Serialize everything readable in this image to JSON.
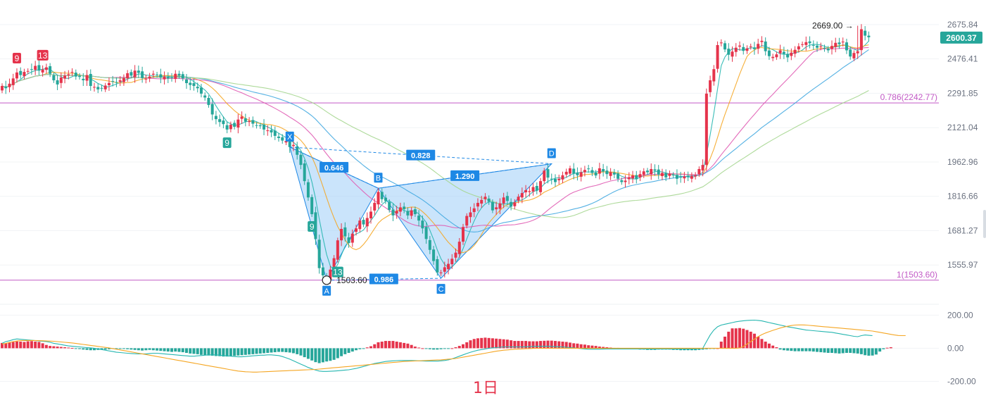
{
  "timeframe_label": "1日",
  "colors": {
    "up": "#e5334b",
    "down": "#26a69a",
    "harmonic_fill": "#9fcdf7",
    "harmonic_line": "#1e88e5",
    "ma_short": "#26b6b0",
    "ma_mid": "#f5a623",
    "ma_long1": "#e05bb3",
    "ma_long2": "#41a8e0",
    "ma_long3": "#a5d68f",
    "fib_line": "#c25ac6",
    "price_tag": "#26a69a"
  },
  "price_axis": {
    "ticks": [
      "2675.84",
      "2476.41",
      "2291.85",
      "2121.04",
      "1962.96",
      "1816.66",
      "1681.27",
      "1555.97"
    ],
    "current_price": "2600.37"
  },
  "indicator_axis": {
    "ticks": [
      "200.00",
      "0.00",
      "-200.00"
    ]
  },
  "chart_data": {
    "type": "candlestick",
    "y_scale": "log",
    "ylim": [
      1440,
      2740
    ],
    "price_ticks": [
      2675.84,
      2476.41,
      2291.85,
      2121.04,
      1962.96,
      1816.66,
      1681.27,
      1555.97
    ],
    "current_price": 2600.37,
    "high_marker": {
      "value": 2669.0,
      "label": "2669.00"
    },
    "low_marker": {
      "value": 1503.6,
      "label": "1503.60"
    },
    "fib_levels": [
      {
        "ratio": "0.786",
        "price": 2242.77,
        "label": "0.786(2242.77)"
      },
      {
        "ratio": "1",
        "price": 1503.6,
        "label": "1(1503.60)"
      }
    ],
    "harmonic_pattern": {
      "points": [
        {
          "label": "X",
          "index": 78,
          "price": 2030
        },
        {
          "label": "A",
          "index": 88,
          "price": 1503.6
        },
        {
          "label": "B",
          "index": 102,
          "price": 1850
        },
        {
          "label": "C",
          "index": 119,
          "price": 1510
        },
        {
          "label": "D",
          "index": 149,
          "price": 1955
        }
      ],
      "ratios": [
        {
          "label": "0.646",
          "from": "X",
          "to": "B"
        },
        {
          "label": "0.828",
          "from": "X",
          "to": "D"
        },
        {
          "label": "1.290",
          "from": "B",
          "to": "D"
        },
        {
          "label": "0.986",
          "from": "A",
          "to": "C"
        }
      ]
    },
    "td_labels": [
      {
        "text": "9",
        "index": 4,
        "pos": "above",
        "kind": "sell"
      },
      {
        "text": "13",
        "index": 11,
        "pos": "above",
        "kind": "sell"
      },
      {
        "text": "9",
        "index": 61,
        "pos": "below",
        "kind": "buy"
      },
      {
        "text": "9",
        "index": 84,
        "pos": "below",
        "kind": "buy"
      },
      {
        "text": "13",
        "index": 91,
        "pos": "below",
        "kind": "buy"
      }
    ],
    "closes": [
      2330,
      2318,
      2342,
      2370,
      2402,
      2388,
      2405,
      2410,
      2420,
      2438,
      2412,
      2418,
      2430,
      2395,
      2360,
      2338,
      2375,
      2385,
      2392,
      2405,
      2380,
      2378,
      2360,
      2388,
      2330,
      2325,
      2312,
      2318,
      2332,
      2346,
      2355,
      2348,
      2360,
      2372,
      2398,
      2385,
      2412,
      2400,
      2372,
      2368,
      2380,
      2395,
      2388,
      2375,
      2380,
      2370,
      2375,
      2395,
      2385,
      2370,
      2345,
      2335,
      2330,
      2318,
      2290,
      2270,
      2232,
      2185,
      2162,
      2148,
      2138,
      2112,
      2135,
      2125,
      2160,
      2175,
      2150,
      2152,
      2140,
      2132,
      2128,
      2112,
      2108,
      2098,
      2082,
      2072,
      2060,
      2058,
      2030,
      2040,
      1995,
      1950,
      1880,
      1812,
      1745,
      1650,
      1545,
      1520,
      1505,
      1540,
      1580,
      1645,
      1688,
      1660,
      1635,
      1670,
      1690,
      1720,
      1705,
      1730,
      1755,
      1790,
      1835,
      1805,
      1798,
      1762,
      1740,
      1758,
      1772,
      1765,
      1740,
      1760,
      1745,
      1720,
      1690,
      1650,
      1610,
      1570,
      1530,
      1530,
      1548,
      1560,
      1578,
      1600,
      1640,
      1695,
      1738,
      1752,
      1768,
      1790,
      1802,
      1815,
      1795,
      1760,
      1772,
      1788,
      1812,
      1798,
      1775,
      1792,
      1815,
      1830,
      1842,
      1838,
      1855,
      1840,
      1880,
      1925,
      1895,
      1888,
      1876,
      1890,
      1905,
      1920,
      1935,
      1912,
      1905,
      1918,
      1928,
      1932,
      1915,
      1904,
      1935,
      1922,
      1910,
      1918,
      1908,
      1890,
      1876,
      1882,
      1896,
      1904,
      1888,
      1910,
      1922,
      1918,
      1932,
      1925,
      1908,
      1915,
      1896,
      1912,
      1905,
      1890,
      1895,
      1900,
      1898,
      1902,
      1905,
      1932,
      1950,
      2290,
      2360,
      2420,
      2555,
      2570,
      2530,
      2500,
      2518,
      2540,
      2552,
      2522,
      2536,
      2548,
      2532,
      2562,
      2580,
      2520,
      2492,
      2488,
      2502,
      2525,
      2505,
      2485,
      2512,
      2528,
      2548,
      2560,
      2572,
      2566,
      2554,
      2540,
      2548,
      2535,
      2525,
      2550,
      2568,
      2560,
      2575,
      2525,
      2490,
      2510,
      2520,
      2648,
      2610,
      2600.37
    ]
  },
  "indicator_data": {
    "type": "macd",
    "ylim": [
      -245,
      240
    ],
    "ticks": [
      200,
      0,
      -200
    ],
    "hist": [
      32,
      30,
      34,
      38,
      41,
      40,
      38,
      42,
      43,
      40,
      38,
      30,
      20,
      14,
      12,
      10,
      8,
      6,
      4,
      2,
      -2,
      -5,
      -8,
      -10,
      -12,
      -12,
      -10,
      -8,
      -8,
      -6,
      -4,
      -3,
      -2,
      -4,
      -6,
      -8,
      -10,
      -12,
      -14,
      -12,
      -10,
      -12,
      -14,
      -16,
      -18,
      -20,
      -22,
      -20,
      -22,
      -24,
      -28,
      -32,
      -34,
      -36,
      -40,
      -42,
      -44,
      -45,
      -47,
      -48,
      -50,
      -50,
      -48,
      -46,
      -44,
      -42,
      -40,
      -38,
      -36,
      -34,
      -32,
      -30,
      -28,
      -26,
      -24,
      -22,
      -22,
      -24,
      -26,
      -30,
      -36,
      -44,
      -54,
      -64,
      -74,
      -84,
      -90,
      -85,
      -80,
      -76,
      -70,
      -60,
      -48,
      -36,
      -28,
      -20,
      -12,
      -6,
      -2,
      5,
      12,
      24,
      36,
      40,
      44,
      44,
      44,
      40,
      36,
      32,
      28,
      20,
      10,
      4,
      0,
      -4,
      -6,
      -8,
      -8,
      -6,
      -4,
      -2,
      0,
      6,
      14,
      24,
      36,
      48,
      56,
      60,
      62,
      64,
      62,
      60,
      58,
      56,
      54,
      52,
      48,
      44,
      44,
      44,
      44,
      42,
      42,
      42,
      44,
      45,
      46,
      46,
      44,
      42,
      40,
      38,
      34,
      30,
      28,
      24,
      22,
      18,
      16,
      14,
      10,
      8,
      6,
      4,
      2,
      2,
      0,
      -2,
      -4,
      -6,
      -6,
      -8,
      -8,
      -10,
      -10,
      -10,
      -8,
      -8,
      -8,
      -8,
      -10,
      -10,
      -12,
      -12,
      -12,
      -12,
      -12,
      -10,
      -8,
      -6,
      -4,
      -2,
      0,
      40,
      70,
      100,
      120,
      120,
      122,
      118,
      110,
      100,
      88,
      70,
      56,
      40,
      28,
      16,
      6,
      -8,
      -12,
      -14,
      -16,
      -18,
      -18,
      -18,
      -18,
      -18,
      -20,
      -22,
      -24,
      -26,
      -28,
      -28,
      -30,
      -32,
      -30,
      -28,
      -28,
      -30,
      -32,
      -36,
      -42,
      -45,
      -44,
      -38,
      -20,
      -6,
      3,
      6
    ],
    "fast": [
      30,
      40,
      45,
      52,
      56,
      54,
      52,
      50,
      48,
      46,
      44,
      42,
      40,
      36,
      30,
      26,
      22,
      18,
      14,
      12,
      10,
      8,
      6,
      4,
      2,
      0,
      -4,
      -8,
      -12,
      -16,
      -20,
      -24,
      -26,
      -28,
      -30,
      -32,
      -33,
      -34,
      -34,
      -34,
      -32,
      -30,
      -30,
      -32,
      -34,
      -36,
      -38,
      -40,
      -42,
      -44,
      -46,
      -48,
      -48,
      -46,
      -44,
      -42,
      -40,
      -40,
      -40,
      -42,
      -44,
      -46,
      -48,
      -50,
      -52,
      -52,
      -50,
      -48,
      -46,
      -44,
      -42,
      -42,
      -40,
      -40,
      -42,
      -44,
      -50,
      -58,
      -66,
      -76,
      -86,
      -96,
      -106,
      -116,
      -124,
      -132,
      -138,
      -140,
      -140,
      -139,
      -138,
      -136,
      -134,
      -132,
      -130,
      -126,
      -122,
      -116,
      -110,
      -104,
      -98,
      -92,
      -88,
      -84,
      -80,
      -78,
      -76,
      -75,
      -74,
      -74,
      -74,
      -74,
      -75,
      -76,
      -77,
      -78,
      -78,
      -78,
      -78,
      -76,
      -74,
      -70,
      -64,
      -56,
      -48,
      -40,
      -32,
      -24,
      -18,
      -12,
      -8,
      -4,
      0,
      2,
      4,
      6,
      8,
      8,
      8,
      8,
      8,
      8,
      9,
      10,
      11,
      12,
      12,
      12,
      12,
      11,
      10,
      9,
      8,
      6,
      4,
      2,
      0,
      -2,
      -4,
      -6,
      -6,
      -6,
      -6,
      -5,
      -4,
      -4,
      -4,
      -4,
      -4,
      -4,
      -4,
      -4,
      -4,
      -4,
      -4,
      -4,
      -4,
      -4,
      -4,
      -4,
      -4,
      -4,
      -4,
      -4,
      -4,
      -4,
      -4,
      -4,
      -4,
      -2,
      0,
      40,
      80,
      110,
      130,
      140,
      145,
      150,
      155,
      160,
      163,
      166,
      168,
      169,
      170,
      168,
      165,
      160,
      155,
      150,
      145,
      140,
      135,
      130,
      126,
      122,
      118,
      114,
      110,
      108,
      106,
      104,
      102,
      100,
      98,
      96,
      92,
      88,
      84,
      80,
      76,
      72,
      70,
      76,
      80,
      78,
      76
    ],
    "slow": [
      25,
      30,
      35,
      40,
      44,
      46,
      47,
      47,
      47,
      47,
      46,
      45,
      44,
      43,
      42,
      40,
      38,
      36,
      34,
      32,
      29,
      26,
      23,
      20,
      17,
      14,
      11,
      8,
      5,
      2,
      -2,
      -6,
      -10,
      -14,
      -18,
      -22,
      -26,
      -30,
      -34,
      -38,
      -42,
      -46,
      -50,
      -54,
      -58,
      -62,
      -66,
      -70,
      -74,
      -78,
      -82,
      -86,
      -90,
      -94,
      -98,
      -102,
      -106,
      -110,
      -114,
      -118,
      -122,
      -126,
      -130,
      -134,
      -138,
      -140,
      -142,
      -143,
      -144,
      -144,
      -143,
      -142,
      -141,
      -140,
      -139,
      -138,
      -137,
      -136,
      -135,
      -134,
      -133,
      -132,
      -131,
      -130,
      -129,
      -128,
      -126,
      -124,
      -122,
      -120,
      -118,
      -116,
      -114,
      -112,
      -110,
      -108,
      -106,
      -104,
      -102,
      -100,
      -98,
      -96,
      -94,
      -92,
      -90,
      -88,
      -86,
      -84,
      -82,
      -80,
      -79,
      -78,
      -77,
      -76,
      -75,
      -74,
      -73,
      -72,
      -71,
      -70,
      -68,
      -66,
      -64,
      -62,
      -58,
      -54,
      -50,
      -46,
      -42,
      -38,
      -34,
      -30,
      -26,
      -22,
      -18,
      -15,
      -12,
      -10,
      -8,
      -6,
      -5,
      -4,
      -3,
      -2,
      -1,
      0,
      0,
      0,
      0,
      0,
      0,
      0,
      0,
      0,
      0,
      0,
      0,
      0,
      0,
      0,
      0,
      0,
      0,
      0,
      0,
      0,
      0,
      0,
      0,
      0,
      0,
      0,
      0,
      0,
      0,
      0,
      0,
      0,
      0,
      0,
      0,
      0,
      0,
      0,
      0,
      0,
      0,
      0,
      0,
      0,
      0,
      0,
      0,
      0,
      0,
      0,
      0,
      0,
      0,
      0,
      2,
      10,
      25,
      40,
      55,
      70,
      82,
      92,
      100,
      108,
      115,
      122,
      128,
      133,
      137,
      140,
      141,
      141,
      140,
      138,
      136,
      134,
      132,
      130,
      128,
      126,
      124,
      122,
      120,
      118,
      116,
      114,
      112,
      110,
      108,
      106,
      104,
      100,
      96,
      92,
      88,
      84,
      80,
      77,
      76,
      76
    ]
  }
}
